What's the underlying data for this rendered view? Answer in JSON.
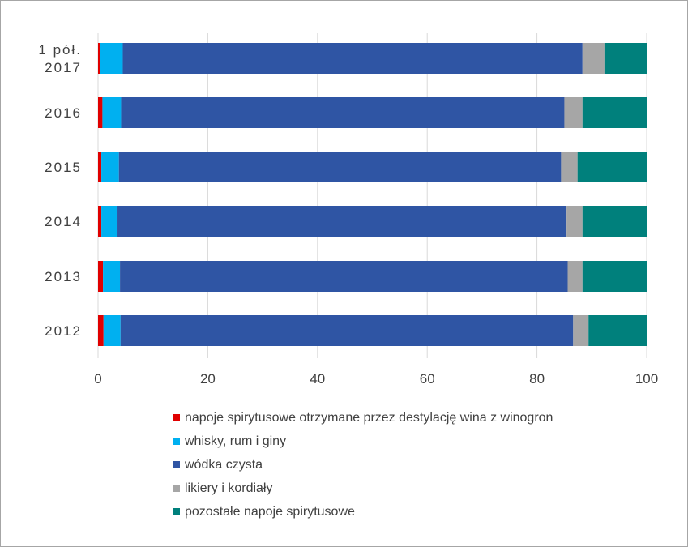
{
  "chart_data": {
    "type": "bar",
    "orientation": "horizontal",
    "stacked": true,
    "categories": [
      "1 pół.\n2017",
      "2016",
      "2015",
      "2014",
      "2013",
      "2012"
    ],
    "xlim": [
      0,
      100
    ],
    "xticks": [
      0,
      20,
      40,
      60,
      80,
      100
    ],
    "grid": true,
    "legend_position": "bottom",
    "series": [
      {
        "name": "napoje spirytusowe otrzymane przez destylację wina z winogron",
        "color": "#e00000",
        "values": [
          0.4,
          0.8,
          0.6,
          0.6,
          0.9,
          1.0
        ]
      },
      {
        "name": "whisky, rum i giny",
        "color": "#00b0f0",
        "values": [
          4.1,
          3.4,
          3.2,
          2.8,
          3.1,
          3.1
        ]
      },
      {
        "name": "wódka czysta",
        "color": "#2f55a4",
        "values": [
          83.8,
          80.8,
          80.6,
          82.0,
          81.6,
          82.5
        ]
      },
      {
        "name": "likiery i kordiały",
        "color": "#a6a6a6",
        "values": [
          4.0,
          3.3,
          3.0,
          2.9,
          2.7,
          2.8
        ]
      },
      {
        "name": "pozostałe napoje spirytusowe",
        "color": "#00807c",
        "values": [
          7.7,
          11.7,
          12.6,
          11.7,
          11.7,
          10.6
        ]
      }
    ]
  }
}
